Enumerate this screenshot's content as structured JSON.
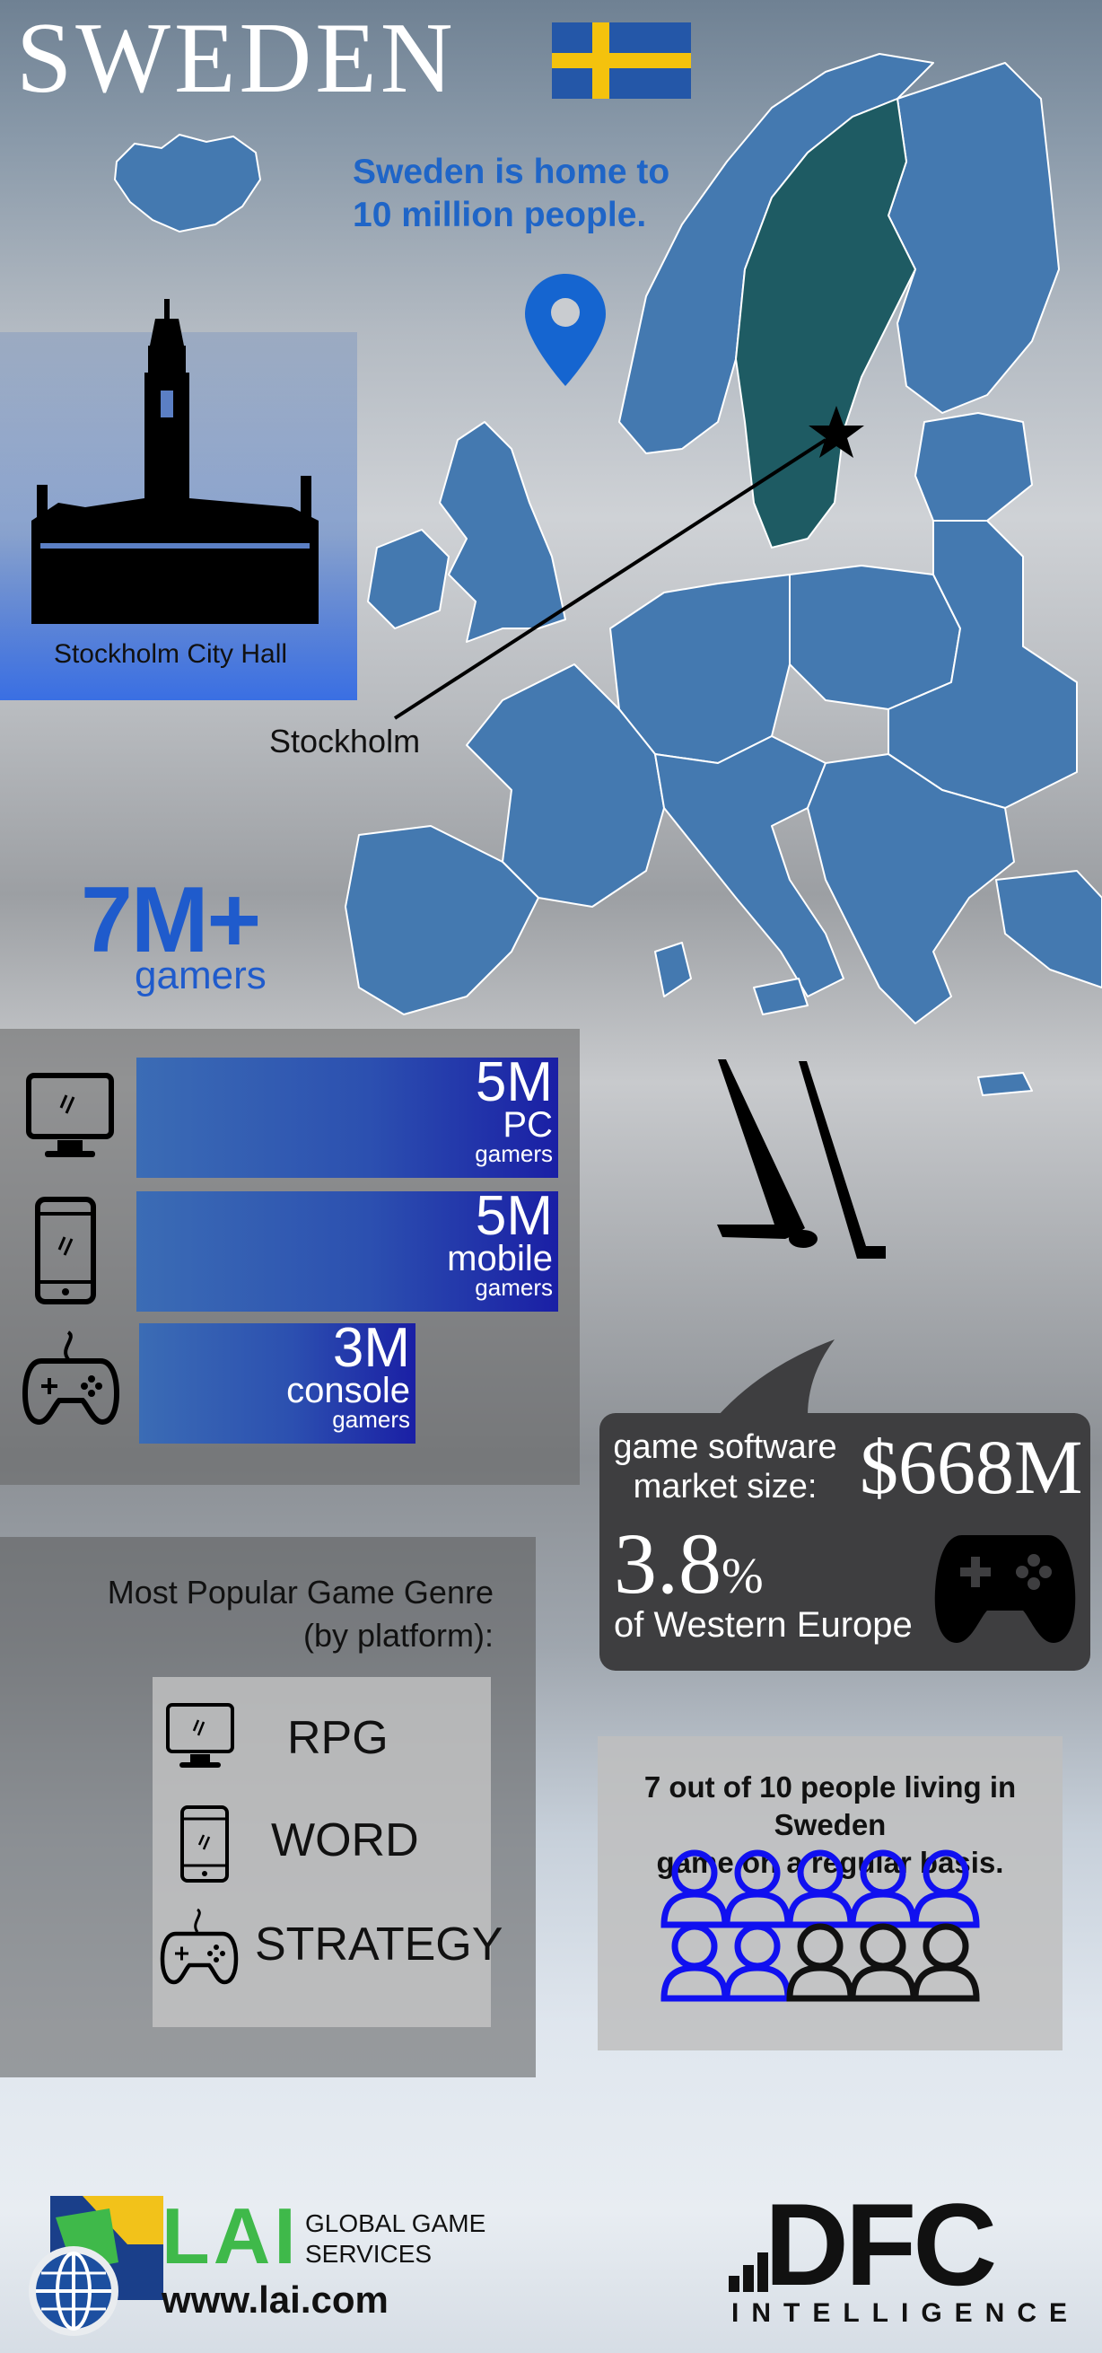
{
  "header": {
    "title": "SWEDEN",
    "flag_colors": {
      "field": "#2457a8",
      "cross": "#f4c20d"
    }
  },
  "population": {
    "line1": "Sweden is home to",
    "line2": "10 million people."
  },
  "city_hall": {
    "label": "Stockholm City Hall"
  },
  "map": {
    "city_label": "Stockholm",
    "highlight_color": "#1e5b63",
    "country_color": "#4479b0"
  },
  "gamers": {
    "total": "7M+",
    "label": "gamers"
  },
  "platforms": [
    {
      "icon": "monitor-icon",
      "value": "5M",
      "platform": "PC",
      "unit": "gamers"
    },
    {
      "icon": "phone-icon",
      "value": "5M",
      "platform": "mobile",
      "unit": "gamers"
    },
    {
      "icon": "gamepad-icon",
      "value": "3M",
      "platform": "console",
      "unit": "gamers"
    }
  ],
  "market": {
    "label_line1": "game software",
    "label_line2": "market size:",
    "value": "$668M",
    "share": "3.8",
    "share_unit": "%",
    "share_label": "of Western Europe"
  },
  "genres": {
    "title_line1": "Most Popular Game Genre",
    "title_line2": "(by platform):",
    "items": [
      {
        "icon": "monitor-icon",
        "genre": "RPG"
      },
      {
        "icon": "phone-icon",
        "genre": "WORD"
      },
      {
        "icon": "gamepad-icon",
        "genre": "STRATEGY"
      }
    ]
  },
  "people": {
    "line1": "7 out of 10 people living in Sweden",
    "line2": "game on a regular basis.",
    "gamers_count": 7,
    "total_count": 10,
    "gamer_color": "#1010f0",
    "other_color": "#111111"
  },
  "footer": {
    "lai_logo": "LAI",
    "lai_sub1": "GLOBAL GAME",
    "lai_sub2": "SERVICES",
    "lai_url": "www.lai.com",
    "dfc_logo": "DFC",
    "dfc_sub": "INTELLIGENCE"
  }
}
